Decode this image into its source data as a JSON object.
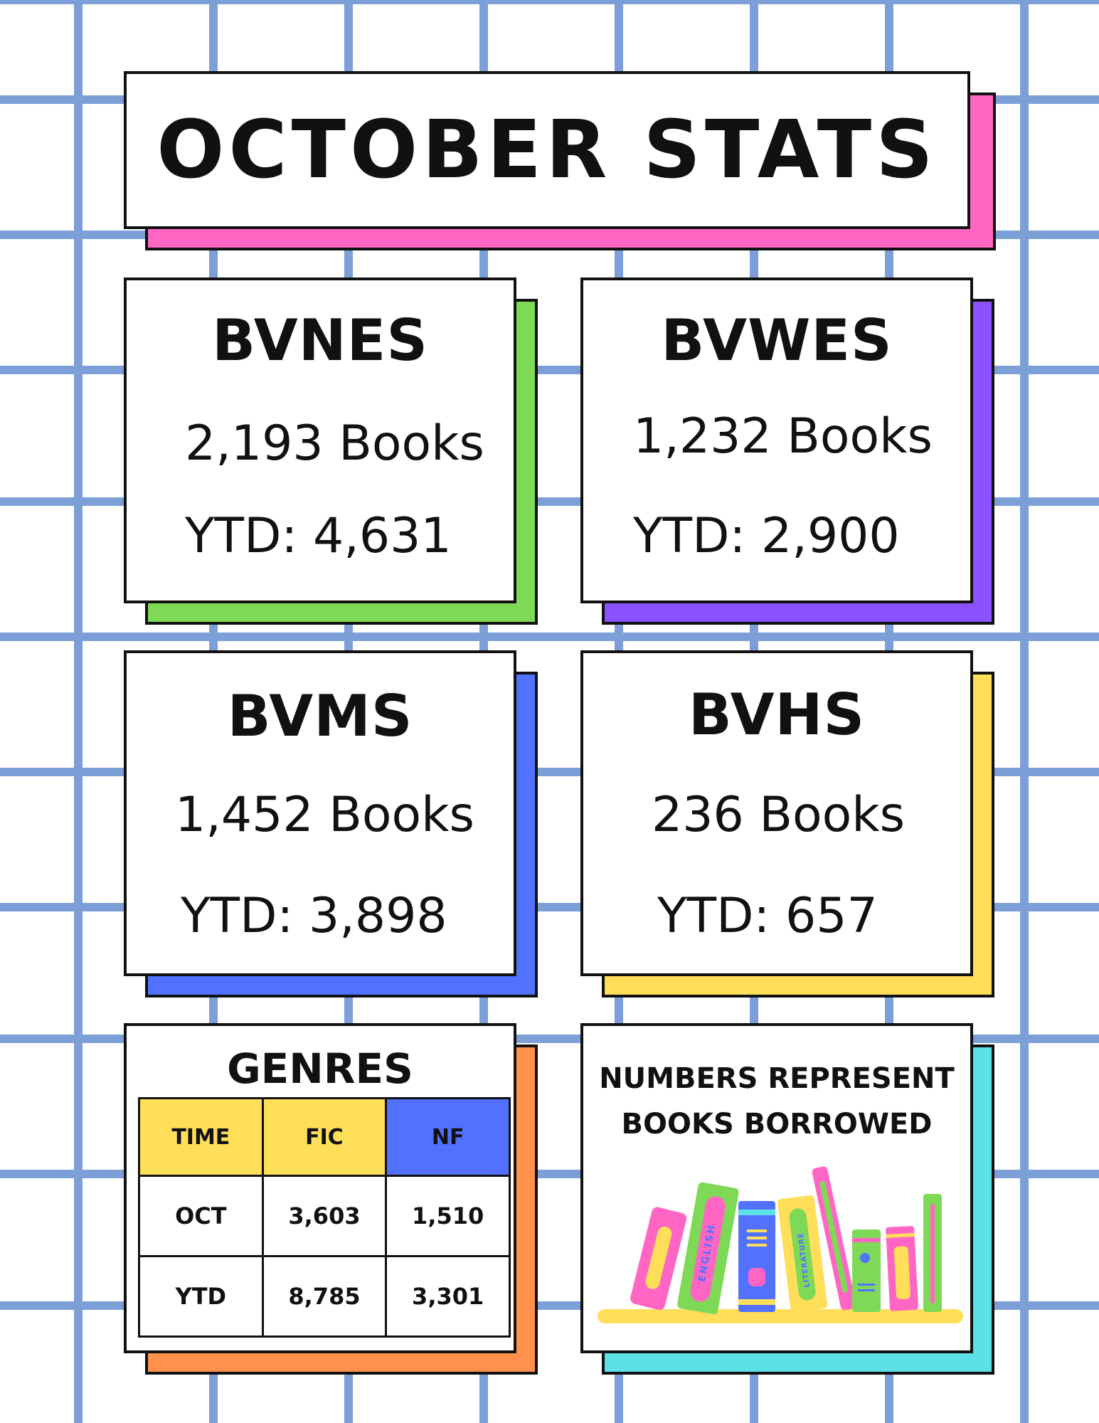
{
  "title": "OCTOBER STATS",
  "schools": [
    {
      "name": "BVNES",
      "books": "2,193 Books",
      "ytd": "YTD: 4,631",
      "accent": "#7ed957"
    },
    {
      "name": "BVWES",
      "books": "1,232 Books",
      "ytd": "YTD: 2,900",
      "accent": "#8c52ff"
    },
    {
      "name": "BVMS",
      "books": "1,452 Books",
      "ytd": "YTD: 3,898",
      "accent": "#5271ff"
    },
    {
      "name": "BVHS",
      "books": "236 Books",
      "ytd": "YTD: 657",
      "accent": "#ffde59"
    }
  ],
  "genres": {
    "title": "GENRES",
    "headers": [
      "TIME",
      "FIC",
      "NF"
    ],
    "header_colors": [
      "#ffde59",
      "#ffde59",
      "#5271ff"
    ],
    "rows": [
      [
        "OCT",
        "3,603",
        "1,510"
      ],
      [
        "YTD",
        "8,785",
        "3,301"
      ]
    ],
    "accent": "#ff914d"
  },
  "note": {
    "line1": "NUMBERS REPRESENT",
    "line2": "BOOKS BORROWED",
    "accent": "#5ce1e6",
    "illustration": "books-on-shelf-icon"
  },
  "colors": {
    "grid": "#7b9fd6",
    "title_accent": "#ff66c4",
    "shelf": "#ffde59",
    "book_label_english": "ENGLISH",
    "book_label_literature": "LITERATURE"
  }
}
